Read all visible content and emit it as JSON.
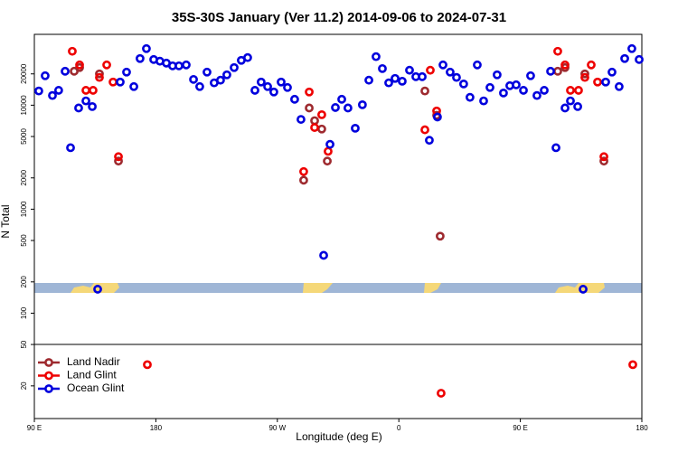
{
  "chart_data": {
    "type": "scatter",
    "title": "35S-30S January (Ver 11.2)   2014-09-06 to 2024-07-31",
    "x_label": "Longitude (deg E)",
    "y_label": "N Total",
    "log_y": true,
    "legend": "lower left",
    "xlim": [
      90,
      540
    ],
    "ylim": [
      9.7,
      48000
    ],
    "xticks": [
      {
        "value": 90,
        "label": "90 E"
      },
      {
        "value": 180,
        "label": "180"
      },
      {
        "value": 270,
        "label": "90 W"
      },
      {
        "value": 360,
        "label": "0"
      },
      {
        "value": 450,
        "label": "90 E"
      },
      {
        "value": 540,
        "label": "180"
      }
    ],
    "yticks": [
      20,
      50,
      100,
      200,
      500,
      1000,
      2000,
      5000,
      10000,
      20000
    ],
    "series": [
      {
        "name": "Land Nadir",
        "color": "#9e2a2f",
        "x": [
          119.5,
          123.5,
          138.2,
          152.3,
          289.5,
          293.6,
          297.6,
          302.9,
          307,
          379.3,
          388,
          390.6,
          477.7,
          483.1,
          497.8,
          511.9
        ],
        "values": [
          21200,
          23000,
          20000,
          2900,
          1900,
          9400,
          7100,
          5900,
          2900,
          13700,
          8000,
          550,
          21200,
          23000,
          20000,
          2900
        ]
      },
      {
        "name": "Land Glint",
        "color": "#ee0000",
        "x": [
          118.1,
          123.5,
          128.2,
          133.5,
          138.2,
          143.6,
          148.3,
          152.3,
          173.7,
          289.5,
          293.6,
          297.6,
          302.9,
          307.6,
          379.3,
          383.3,
          388,
          391.3,
          477.7,
          483.1,
          487.1,
          493.1,
          497.8,
          502.5,
          507.2,
          511.9,
          533.3
        ],
        "values": [
          33000,
          24400,
          13900,
          13900,
          18500,
          24400,
          16700,
          3200,
          32,
          2300,
          13400,
          6100,
          8100,
          3600,
          5800,
          21700,
          8800,
          17,
          33000,
          24400,
          13900,
          13900,
          18500,
          24400,
          16700,
          3200,
          32
        ]
      },
      {
        "name": "Ocean Glint",
        "color": "#0000dd",
        "x": [
          93.3,
          98,
          103.4,
          108,
          112.8,
          116.8,
          122.8,
          128.2,
          132.9,
          136.9,
          153.6,
          158.3,
          163.7,
          168.3,
          173,
          178.4,
          183,
          187.8,
          192.4,
          197.1,
          202.5,
          207.9,
          212.5,
          217.9,
          223.2,
          227.9,
          232.6,
          238,
          243.3,
          248,
          253.4,
          258,
          262.8,
          267.4,
          272.8,
          277.5,
          282.8,
          287.5,
          304.3,
          309,
          313,
          317.7,
          322.3,
          327.7,
          333,
          337.8,
          343.1,
          347.8,
          352.5,
          357.2,
          362.5,
          367.9,
          372.6,
          377.3,
          382.6,
          388.6,
          392.7,
          398,
          402.7,
          408,
          412.7,
          418.1,
          422.8,
          427.5,
          432.8,
          437.5,
          442.2,
          446.9,
          452.3,
          457.6,
          462.3,
          467.7,
          472.4,
          476.4,
          483.1,
          487.1,
          492.5,
          496.5,
          513.2,
          517.9,
          523.2,
          527.3,
          532.6,
          538
        ],
        "values": [
          13700,
          19200,
          12400,
          13900,
          21200,
          3900,
          9400,
          11000,
          9700,
          170,
          16700,
          20800,
          15100,
          28100,
          35000,
          27500,
          26500,
          25400,
          23900,
          23900,
          24400,
          17700,
          15100,
          20800,
          16400,
          17400,
          19600,
          23000,
          27000,
          28700,
          13900,
          16700,
          15100,
          13400,
          16700,
          14800,
          11400,
          7300,
          360,
          4200,
          9500,
          11400,
          9400,
          6000,
          10100,
          17400,
          29300,
          22500,
          16400,
          18100,
          17000,
          21700,
          18800,
          18800,
          4600,
          7700,
          24400,
          20800,
          18500,
          16000,
          11900,
          24400,
          11000,
          14800,
          19600,
          13100,
          15400,
          15700,
          13900,
          19200,
          12400,
          13900,
          21200,
          3900,
          9400,
          11000,
          9700,
          170,
          16700,
          20800,
          15100,
          28100,
          35000,
          27500
        ]
      }
    ]
  }
}
